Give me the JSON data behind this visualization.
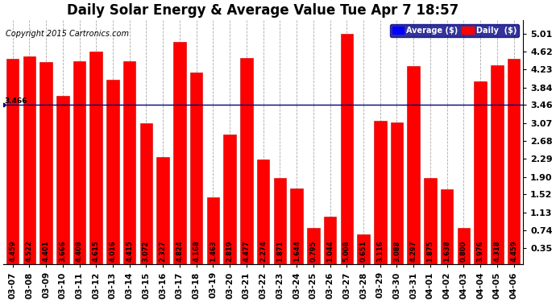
{
  "title": "Daily Solar Energy & Average Value Tue Apr 7 18:57",
  "copyright": "Copyright 2015 Cartronics.com",
  "dates": [
    "03-07",
    "03-08",
    "03-09",
    "03-10",
    "03-11",
    "03-12",
    "03-13",
    "03-14",
    "03-15",
    "03-16",
    "03-17",
    "03-18",
    "03-19",
    "03-20",
    "03-21",
    "03-22",
    "03-23",
    "03-24",
    "03-25",
    "03-26",
    "03-27",
    "03-28",
    "03-29",
    "03-30",
    "03-31",
    "04-01",
    "04-02",
    "04-03",
    "04-04",
    "04-05",
    "04-06"
  ],
  "values": [
    4.459,
    4.522,
    4.401,
    3.666,
    4.408,
    4.615,
    4.016,
    4.415,
    3.072,
    2.327,
    4.824,
    4.168,
    1.463,
    2.819,
    4.477,
    2.274,
    1.871,
    1.644,
    0.795,
    1.044,
    5.008,
    0.651,
    3.116,
    3.088,
    4.297,
    1.875,
    1.638,
    0.8,
    3.976,
    4.318,
    4.459
  ],
  "average": 3.466,
  "bar_color": "#ff0000",
  "average_line_color": "#000080",
  "bar_edge_color": "#cc0000",
  "background_color": "#ffffff",
  "grid_color": "#aaaaaa",
  "yticks": [
    0.35,
    0.74,
    1.13,
    1.52,
    1.9,
    2.29,
    2.68,
    3.07,
    3.46,
    3.84,
    4.23,
    4.62,
    5.01
  ],
  "ymin": 0.0,
  "ymax": 5.3,
  "legend_avg_color": "#0000ff",
  "legend_daily_color": "#ff0000",
  "title_fontsize": 12,
  "tick_fontsize": 8,
  "bar_label_fontsize": 6,
  "copyright_fontsize": 7,
  "figsize": [
    6.9,
    3.75
  ],
  "dpi": 100
}
